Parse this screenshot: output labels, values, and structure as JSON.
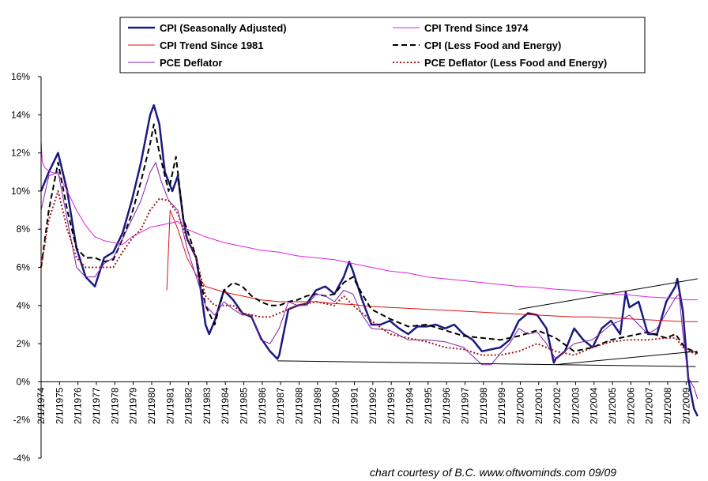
{
  "credit": "chart courtesy of B.C.    www.oftwominds.com  09/09",
  "chart_data": {
    "type": "line",
    "title": "",
    "xlabel": "",
    "ylabel": "",
    "ylim": [
      -4,
      16
    ],
    "xlim": [
      1974.08,
      2009.75
    ],
    "ytick_values": [
      -4,
      -2,
      0,
      2,
      4,
      6,
      8,
      10,
      12,
      14,
      16
    ],
    "ytick_labels": [
      "-4%",
      "-2%",
      "0%",
      "2%",
      "4%",
      "6%",
      "8%",
      "10%",
      "12%",
      "14%",
      "16%"
    ],
    "xtick_labels": [
      "2/1/1974",
      "2/1/1975",
      "2/1/1976",
      "2/1/1977",
      "2/1/1978",
      "2/1/1979",
      "2/1/1980",
      "2/1/1981",
      "2/1/1982",
      "2/1/1983",
      "2/1/1984",
      "2/1/1985",
      "2/1/1986",
      "2/1/1987",
      "2/1/1988",
      "2/1/1989",
      "2/1/1990",
      "2/1/1991",
      "2/1/1992",
      "2/1/1993",
      "2/1/1994",
      "2/1/1995",
      "2/1/1996",
      "2/1/1997",
      "2/1/1998",
      "2/1/1999",
      "2/1/2000",
      "2/1/2001",
      "2/1/2002",
      "2/1/2003",
      "2/1/2004",
      "2/1/2005",
      "2/1/2006",
      "2/1/2007",
      "2/1/2008",
      "2/1/2009"
    ],
    "xtick_values": [
      1974.08,
      1975.08,
      1976.08,
      1977.08,
      1978.08,
      1979.08,
      1980.08,
      1981.08,
      1982.08,
      1983.08,
      1984.08,
      1985.08,
      1986.08,
      1987.08,
      1988.08,
      1989.08,
      1990.08,
      1991.08,
      1992.08,
      1993.08,
      1994.08,
      1995.08,
      1996.08,
      1997.08,
      1998.08,
      1999.08,
      2000.08,
      2001.08,
      2002.08,
      2003.08,
      2004.08,
      2005.08,
      2006.08,
      2007.08,
      2008.08,
      2009.08
    ],
    "legend": {
      "placement": "top",
      "entries": [
        {
          "label": "CPI (Seasonally Adjusted)",
          "color": "#1a1a80",
          "style": "solid",
          "width": 2.5
        },
        {
          "label": "CPI Trend Since 1974",
          "color": "#e020e0",
          "style": "solid",
          "width": 1
        },
        {
          "label": "CPI Trend Since 1981",
          "color": "#dd1111",
          "style": "solid",
          "width": 1
        },
        {
          "label": "CPI (Less Food and Energy)",
          "color": "#000000",
          "style": "dashed",
          "width": 2
        },
        {
          "label": "PCE Deflator",
          "color": "#8020b0",
          "style": "solid",
          "width": 1
        },
        {
          "label": "PCE Deflator (Less Food and Energy)",
          "color": "#a01818",
          "style": "dotted",
          "width": 2
        }
      ]
    },
    "series": [
      {
        "name": "CPI (Seasonally Adjusted)",
        "color": "#1a1a80",
        "style": "solid",
        "width": 2.5,
        "x": [
          1974.08,
          1974.5,
          1975.0,
          1975.5,
          1976.0,
          1976.5,
          1977.0,
          1977.5,
          1978.0,
          1978.5,
          1979.0,
          1979.5,
          1980.0,
          1980.2,
          1980.5,
          1980.8,
          1981.0,
          1981.2,
          1981.5,
          1981.8,
          1982.0,
          1982.5,
          1983.0,
          1983.2,
          1983.5,
          1984.0,
          1984.5,
          1985.0,
          1985.5,
          1986.0,
          1986.5,
          1986.9,
          1987.0,
          1987.5,
          1988.0,
          1988.5,
          1989.0,
          1989.5,
          1990.0,
          1990.5,
          1990.8,
          1991.0,
          1991.5,
          1992.0,
          1992.5,
          1993.0,
          1993.5,
          1994.0,
          1994.5,
          1995.0,
          1995.5,
          1996.0,
          1996.5,
          1997.0,
          1997.5,
          1998.0,
          1998.5,
          1999.0,
          1999.5,
          2000.0,
          2000.5,
          2001.0,
          2001.5,
          2001.9,
          2002.0,
          2002.5,
          2003.0,
          2003.5,
          2004.0,
          2004.5,
          2005.0,
          2005.5,
          2005.8,
          2006.0,
          2006.5,
          2007.0,
          2007.5,
          2008.0,
          2008.5,
          2008.6,
          2008.9,
          2009.2,
          2009.5,
          2009.7
        ],
        "y": [
          10.0,
          11.0,
          12.0,
          10.0,
          7.0,
          5.5,
          5.0,
          6.5,
          6.8,
          7.8,
          9.5,
          11.5,
          14.0,
          14.5,
          13.5,
          11.0,
          10.5,
          10.0,
          10.8,
          8.5,
          7.5,
          6.5,
          3.0,
          2.5,
          3.2,
          4.8,
          4.3,
          3.6,
          3.4,
          2.3,
          1.6,
          1.2,
          1.4,
          3.8,
          4.0,
          4.1,
          4.8,
          5.0,
          4.6,
          5.5,
          6.3,
          5.8,
          4.3,
          3.0,
          3.0,
          3.2,
          2.8,
          2.5,
          2.9,
          2.9,
          3.0,
          2.8,
          3.0,
          2.5,
          2.2,
          1.6,
          1.7,
          1.8,
          2.2,
          3.2,
          3.6,
          3.5,
          2.8,
          1.0,
          1.2,
          1.6,
          2.8,
          2.2,
          1.8,
          2.8,
          3.2,
          2.5,
          4.7,
          3.9,
          4.2,
          2.5,
          2.5,
          4.2,
          5.0,
          5.4,
          3.7,
          0.1,
          -1.4,
          -1.8
        ]
      },
      {
        "name": "CPI Trend Since 1974",
        "color": "#e020e0",
        "style": "solid",
        "width": 1,
        "x": [
          1974.08,
          1974.15,
          1974.3,
          1974.6,
          1975.0,
          1975.5,
          1976.0,
          1976.5,
          1977.0,
          1977.5,
          1978.0,
          1978.5,
          1979.0,
          1980.0,
          1981.0,
          1981.5,
          1982.0,
          1983.0,
          1984.0,
          1985.0,
          1986.0,
          1987.0,
          1988.0,
          1989.0,
          1990.0,
          1991.0,
          1992.0,
          1993.0,
          1994.0,
          1995.0,
          1996.0,
          1997.0,
          1998.0,
          1999.0,
          2000.0,
          2001.0,
          2002.0,
          2003.0,
          2004.0,
          2005.0,
          2006.0,
          2007.0,
          2008.0,
          2008.5,
          2009.0,
          2009.7
        ],
        "y": [
          12.6,
          11.5,
          11.2,
          11.0,
          10.9,
          10.0,
          9.0,
          8.2,
          7.6,
          7.4,
          7.3,
          7.2,
          7.6,
          8.1,
          8.3,
          8.4,
          8.0,
          7.6,
          7.3,
          7.1,
          6.9,
          6.8,
          6.6,
          6.5,
          6.4,
          6.2,
          6.0,
          5.8,
          5.7,
          5.5,
          5.4,
          5.3,
          5.2,
          5.1,
          5.0,
          4.95,
          4.85,
          4.8,
          4.7,
          4.6,
          4.55,
          4.45,
          4.4,
          4.4,
          4.3,
          4.3
        ]
      },
      {
        "name": "CPI Trend Since 1981",
        "color": "#dd1111",
        "style": "solid",
        "width": 1,
        "x": [
          1980.9,
          1981.08,
          1981.5,
          1982.0,
          1982.5,
          1983.0,
          1984.0,
          1985.0,
          1986.0,
          1987.0,
          1988.0,
          1989.0,
          1990.0,
          1991.0,
          1992.0,
          1993.0,
          1994.0,
          1995.0,
          1996.0,
          1997.0,
          1998.0,
          1999.0,
          2000.0,
          2001.0,
          2002.0,
          2003.0,
          2004.0,
          2005.0,
          2006.0,
          2007.0,
          2008.0,
          2009.0,
          2009.7
        ],
        "y": [
          4.8,
          9.0,
          8.0,
          6.5,
          5.6,
          5.0,
          4.7,
          4.5,
          4.3,
          4.2,
          4.2,
          4.2,
          4.1,
          4.05,
          3.95,
          3.9,
          3.85,
          3.8,
          3.75,
          3.7,
          3.65,
          3.6,
          3.55,
          3.5,
          3.45,
          3.4,
          3.4,
          3.35,
          3.3,
          3.25,
          3.2,
          3.15,
          3.15
        ]
      },
      {
        "name": "CPI (Less Food and Energy)",
        "color": "#000000",
        "style": "dashed",
        "width": 2,
        "x": [
          1974.08,
          1974.5,
          1975.0,
          1975.5,
          1976.0,
          1976.5,
          1977.0,
          1977.5,
          1978.0,
          1978.5,
          1979.0,
          1979.5,
          1980.0,
          1980.2,
          1980.5,
          1981.0,
          1981.4,
          1981.8,
          1982.0,
          1982.5,
          1983.0,
          1983.5,
          1984.0,
          1984.5,
          1985.0,
          1985.5,
          1986.0,
          1986.5,
          1987.0,
          1987.5,
          1988.0,
          1988.5,
          1989.0,
          1989.5,
          1990.0,
          1990.5,
          1991.0,
          1991.5,
          1992.0,
          1993.0,
          1994.0,
          1995.0,
          1996.0,
          1997.0,
          1998.0,
          1999.0,
          2000.0,
          2001.0,
          2002.0,
          2003.0,
          2004.0,
          2005.0,
          2006.0,
          2007.0,
          2008.0,
          2008.5,
          2009.0,
          2009.5,
          2009.7
        ],
        "y": [
          6.0,
          9.0,
          11.5,
          9.0,
          7.0,
          6.5,
          6.5,
          6.3,
          6.4,
          7.5,
          8.8,
          10.5,
          12.5,
          13.5,
          12.0,
          10.0,
          11.8,
          8.5,
          8.0,
          6.5,
          4.0,
          3.0,
          4.8,
          5.2,
          5.0,
          4.5,
          4.2,
          4.0,
          4.0,
          4.2,
          4.3,
          4.5,
          4.6,
          4.5,
          4.6,
          5.2,
          5.5,
          4.6,
          3.8,
          3.3,
          2.9,
          3.0,
          2.7,
          2.4,
          2.3,
          2.2,
          2.4,
          2.7,
          2.3,
          1.6,
          1.8,
          2.2,
          2.4,
          2.6,
          2.3,
          2.5,
          1.8,
          1.6,
          1.5
        ]
      },
      {
        "name": "PCE Deflator",
        "color": "#8020b0",
        "style": "solid",
        "width": 1,
        "x": [
          1974.08,
          1974.5,
          1975.0,
          1975.5,
          1976.0,
          1976.5,
          1977.0,
          1977.5,
          1978.0,
          1978.5,
          1979.0,
          1979.5,
          1980.0,
          1980.3,
          1980.6,
          1981.0,
          1981.5,
          1982.0,
          1982.5,
          1983.0,
          1983.5,
          1984.0,
          1984.5,
          1985.0,
          1985.5,
          1986.0,
          1986.5,
          1987.0,
          1987.5,
          1988.0,
          1988.5,
          1989.0,
          1989.5,
          1990.0,
          1990.5,
          1991.0,
          1991.5,
          1992.0,
          1993.0,
          1994.0,
          1995.0,
          1996.0,
          1997.0,
          1998.0,
          1998.5,
          1999.0,
          1999.5,
          2000.0,
          2000.5,
          2001.0,
          2001.5,
          2002.0,
          2002.5,
          2003.0,
          2004.0,
          2005.0,
          2005.5,
          2006.0,
          2006.5,
          2007.0,
          2007.5,
          2008.0,
          2008.5,
          2008.7,
          2008.9,
          2009.2,
          2009.5,
          2009.7
        ],
        "y": [
          9.0,
          10.8,
          11.0,
          8.5,
          6.0,
          5.5,
          5.5,
          6.2,
          6.5,
          7.5,
          8.5,
          9.5,
          11.0,
          11.5,
          10.5,
          9.5,
          9.0,
          7.0,
          5.5,
          4.0,
          3.5,
          4.2,
          3.8,
          3.5,
          3.5,
          2.2,
          2.0,
          2.8,
          4.2,
          4.0,
          4.0,
          4.6,
          4.5,
          4.2,
          4.8,
          4.6,
          3.5,
          2.8,
          2.7,
          2.2,
          2.2,
          2.1,
          1.8,
          0.9,
          0.9,
          1.5,
          2.0,
          2.8,
          2.5,
          2.6,
          2.0,
          1.2,
          1.6,
          2.0,
          2.2,
          3.0,
          3.2,
          3.5,
          3.0,
          2.5,
          2.8,
          3.6,
          4.4,
          4.6,
          2.5,
          0.2,
          -0.3,
          -0.9
        ]
      },
      {
        "name": "PCE Deflator (Less Food and Energy)",
        "color": "#a01818",
        "style": "dotted",
        "width": 2,
        "x": [
          1974.08,
          1974.5,
          1975.0,
          1975.5,
          1976.0,
          1976.5,
          1977.0,
          1977.5,
          1978.0,
          1978.5,
          1979.0,
          1979.5,
          1980.0,
          1980.5,
          1981.0,
          1981.5,
          1982.0,
          1982.5,
          1983.0,
          1983.5,
          1984.0,
          1984.5,
          1985.0,
          1985.5,
          1986.0,
          1986.5,
          1987.0,
          1987.5,
          1988.0,
          1988.5,
          1989.0,
          1989.5,
          1990.0,
          1990.5,
          1991.0,
          1992.0,
          1993.0,
          1994.0,
          1995.0,
          1996.0,
          1997.0,
          1998.0,
          1999.0,
          2000.0,
          2001.0,
          2002.0,
          2003.0,
          2004.0,
          2005.0,
          2006.0,
          2007.0,
          2008.0,
          2008.5,
          2009.0,
          2009.5,
          2009.7
        ],
        "y": [
          6.0,
          8.5,
          10.0,
          8.0,
          6.5,
          6.0,
          6.0,
          6.0,
          6.0,
          6.8,
          7.5,
          8.0,
          9.0,
          9.6,
          9.5,
          8.8,
          7.5,
          6.5,
          4.5,
          4.0,
          4.0,
          4.0,
          3.6,
          3.5,
          3.4,
          3.4,
          3.6,
          3.8,
          4.0,
          4.1,
          4.2,
          4.1,
          4.0,
          4.5,
          4.0,
          3.2,
          2.5,
          2.3,
          2.1,
          1.8,
          1.7,
          1.4,
          1.4,
          1.6,
          2.0,
          1.6,
          1.4,
          1.8,
          2.1,
          2.2,
          2.2,
          2.3,
          2.3,
          1.7,
          1.5,
          1.4
        ]
      }
    ],
    "trend_lines": [
      {
        "color": "#000000",
        "width": 1,
        "x": [
          1986.9,
          2009.6
        ],
        "y": [
          1.1,
          0.8
        ]
      },
      {
        "color": "#000000",
        "width": 1,
        "x": [
          2000.0,
          2009.7
        ],
        "y": [
          3.8,
          5.4
        ]
      },
      {
        "color": "#000000",
        "width": 1,
        "x": [
          2002.0,
          2009.7
        ],
        "y": [
          0.9,
          1.6
        ]
      }
    ]
  }
}
